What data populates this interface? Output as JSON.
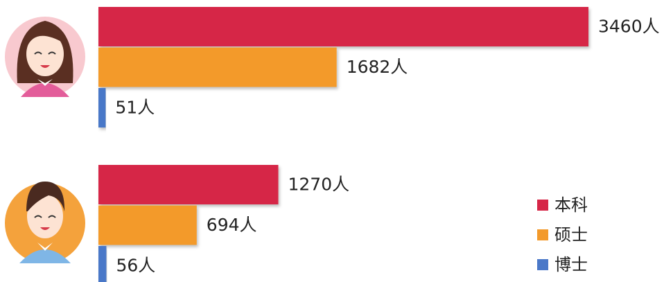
{
  "chart_data": {
    "type": "bar",
    "orientation": "horizontal",
    "categories": [
      null,
      null
    ],
    "series": [
      {
        "name": "本科",
        "color": "#d62647",
        "values": [
          3460,
          1270
        ],
        "value_labels": [
          "3460人",
          "1270人"
        ]
      },
      {
        "name": "硕士",
        "color": "#f39a2b",
        "values": [
          1682,
          694
        ],
        "value_labels": [
          "1682人",
          "694人"
        ]
      },
      {
        "name": "博士",
        "color": "#4a78c8",
        "values": [
          51,
          56
        ],
        "value_labels": [
          "51人",
          "56人"
        ]
      }
    ]
  }
}
